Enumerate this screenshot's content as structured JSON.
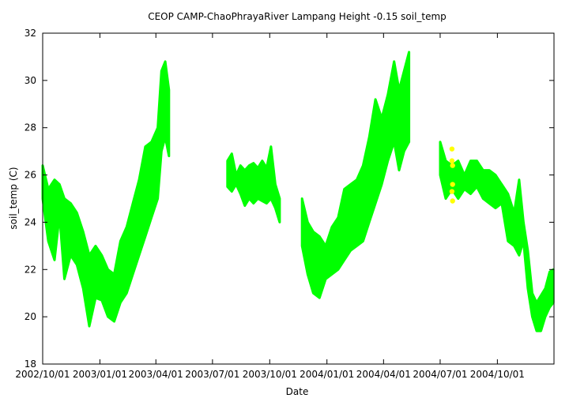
{
  "chart_data": {
    "type": "scatter",
    "title": "CEOP CAMP-ChaoPhrayaRiver Lampang Height -0.15 soil_temp",
    "xlabel": "Date",
    "ylabel": "soil_temp (C)",
    "xlim": [
      "2002-10-01",
      "2004-12-31"
    ],
    "ylim": [
      18,
      32
    ],
    "grid": false,
    "legend": "none",
    "y_ticks": [
      18,
      20,
      22,
      24,
      26,
      28,
      30,
      32
    ],
    "x_ticks": [
      "2002/10/01",
      "2003/01/01",
      "2003/04/01",
      "2003/07/01",
      "2003/10/01",
      "2004/01/01",
      "2004/04/01",
      "2004/07/01",
      "2004/10/01"
    ],
    "x_tick_dates": [
      "2002-10-01",
      "2003-01-01",
      "2003-04-01",
      "2003-07-01",
      "2003-10-01",
      "2004-01-01",
      "2004-04-01",
      "2004-07-01",
      "2004-10-01"
    ],
    "series": [
      {
        "color": "#00ff00",
        "segments": [
          {
            "dates": [
              "2002-10-01",
              "2002-10-10",
              "2002-10-20",
              "2002-10-28",
              "2002-11-05",
              "2002-11-15",
              "2002-11-25",
              "2002-12-05",
              "2002-12-15",
              "2002-12-25",
              "2003-01-04",
              "2003-01-14",
              "2003-01-24",
              "2003-02-03",
              "2003-02-13",
              "2003-02-23",
              "2003-03-05",
              "2003-03-15",
              "2003-03-25",
              "2003-04-04",
              "2003-04-10",
              "2003-04-16",
              "2003-04-22"
            ],
            "lo": [
              25.0,
              23.2,
              22.4,
              24.3,
              21.6,
              22.6,
              22.2,
              21.2,
              19.6,
              20.8,
              20.7,
              20.0,
              19.8,
              20.6,
              21.0,
              21.8,
              22.6,
              23.4,
              24.2,
              25.0,
              27.0,
              27.6,
              26.8
            ],
            "hi": [
              26.4,
              25.4,
              25.8,
              25.6,
              25.0,
              24.8,
              24.4,
              23.6,
              22.6,
              23.0,
              22.6,
              22.0,
              21.8,
              23.2,
              23.8,
              24.8,
              25.8,
              27.2,
              27.4,
              28.0,
              30.4,
              30.8,
              29.6
            ]
          },
          {
            "dates": [
              "2003-07-25",
              "2003-08-01",
              "2003-08-08",
              "2003-08-15",
              "2003-08-22",
              "2003-08-29",
              "2003-09-05",
              "2003-09-12",
              "2003-09-19",
              "2003-09-26",
              "2003-10-03",
              "2003-10-10",
              "2003-10-17"
            ],
            "lo": [
              25.5,
              25.3,
              25.6,
              25.2,
              24.7,
              25.0,
              24.8,
              25.0,
              24.9,
              24.8,
              25.0,
              24.6,
              24.0
            ],
            "hi": [
              26.6,
              26.9,
              26.0,
              26.4,
              26.2,
              26.4,
              26.5,
              26.3,
              26.6,
              26.3,
              27.2,
              25.6,
              25.0
            ]
          },
          {
            "dates": [
              "2003-11-22",
              "2003-12-01",
              "2003-12-10",
              "2003-12-20",
              "2003-12-30",
              "2004-01-09",
              "2004-01-19",
              "2004-01-29",
              "2004-02-08",
              "2004-02-18",
              "2004-02-28",
              "2004-03-09",
              "2004-03-19",
              "2004-03-29",
              "2004-04-08",
              "2004-04-18",
              "2004-04-26",
              "2004-05-04",
              "2004-05-12"
            ],
            "lo": [
              23.0,
              21.8,
              21.0,
              20.8,
              21.6,
              21.8,
              22.0,
              22.4,
              22.8,
              23.0,
              23.2,
              24.0,
              24.8,
              25.6,
              26.6,
              27.4,
              26.2,
              27.0,
              27.4
            ],
            "hi": [
              25.0,
              24.0,
              23.6,
              23.4,
              23.0,
              23.8,
              24.2,
              25.4,
              25.6,
              25.8,
              26.4,
              27.6,
              29.2,
              28.4,
              29.4,
              30.8,
              29.6,
              30.4,
              31.2
            ]
          },
          {
            "dates": [
              "2004-07-01",
              "2004-07-10",
              "2004-07-20",
              "2004-07-30",
              "2004-08-09",
              "2004-08-19",
              "2004-08-29",
              "2004-09-08",
              "2004-09-18",
              "2004-09-28",
              "2004-10-08",
              "2004-10-18",
              "2004-10-28",
              "2004-11-05",
              "2004-11-12",
              "2004-11-19",
              "2004-11-26",
              "2004-12-03",
              "2004-12-10",
              "2004-12-17",
              "2004-12-24",
              "2004-12-30"
            ],
            "lo": [
              26.0,
              25.0,
              25.4,
              25.0,
              25.4,
              25.2,
              25.5,
              25.0,
              24.8,
              24.6,
              24.8,
              23.2,
              23.0,
              22.6,
              23.2,
              21.2,
              20.0,
              19.4,
              19.4,
              20.0,
              20.4,
              20.6
            ],
            "hi": [
              27.4,
              26.6,
              26.4,
              26.6,
              26.0,
              26.6,
              26.6,
              26.2,
              26.2,
              26.0,
              25.6,
              25.2,
              24.4,
              25.8,
              24.0,
              22.8,
              21.0,
              20.6,
              20.9,
              21.2,
              21.9,
              22.0
            ]
          }
        ]
      },
      {
        "color": "#ffff00",
        "points": [
          {
            "date": "2004-07-20",
            "y": 27.1
          },
          {
            "date": "2004-07-20",
            "y": 26.6
          },
          {
            "date": "2004-07-21",
            "y": 26.4
          },
          {
            "date": "2004-07-21",
            "y": 25.6
          },
          {
            "date": "2004-07-20",
            "y": 25.3
          },
          {
            "date": "2004-07-21",
            "y": 24.9
          }
        ]
      }
    ]
  }
}
